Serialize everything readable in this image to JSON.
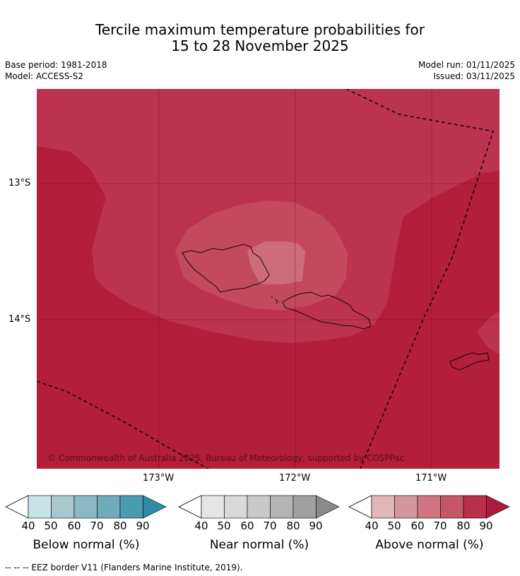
{
  "title": {
    "line1": "Tercile maximum temperature probabilities for",
    "line2": "15 to 28 November 2025"
  },
  "meta": {
    "base_period": "Base period: 1981-2018",
    "model": "Model: ACCESS-S2",
    "model_run": "Model run: 01/11/2025",
    "issued": "Issued: 03/11/2025"
  },
  "map": {
    "lat_labels": [
      "13°S",
      "14°S"
    ],
    "lon_labels": [
      "173°W",
      "172°W",
      "171°W"
    ],
    "copyright": "© Commonwealth of Australia 2025, Bureau of Meteorology, supported by COSPPac",
    "ocean_color": "#b31e3a"
  },
  "colorbars": [
    {
      "title": "Below normal (%)",
      "ticks": [
        "40",
        "50",
        "60",
        "70",
        "80",
        "90"
      ],
      "colors": [
        "#c8e2e8",
        "#a7c8ce",
        "#8bb8c3",
        "#6eabbb",
        "#4a9ab0",
        "#2e8ca4"
      ]
    },
    {
      "title": "Near normal (%)",
      "ticks": [
        "40",
        "50",
        "60",
        "70",
        "80",
        "90"
      ],
      "colors": [
        "#e5e5e5",
        "#d9d9d9",
        "#c8c8c8",
        "#b4b4b4",
        "#a0a0a0",
        "#8a8a8a"
      ]
    },
    {
      "title": "Above normal (%)",
      "ticks": [
        "40",
        "50",
        "60",
        "70",
        "80",
        "90"
      ],
      "colors": [
        "#e2b5bd",
        "#d4959d",
        "#cf7583",
        "#c45667",
        "#b82e4b",
        "#ad1a3c"
      ]
    }
  ],
  "footnote": "--  --  -- EEZ border V11 (Flanders Marine Institute, 2019)."
}
